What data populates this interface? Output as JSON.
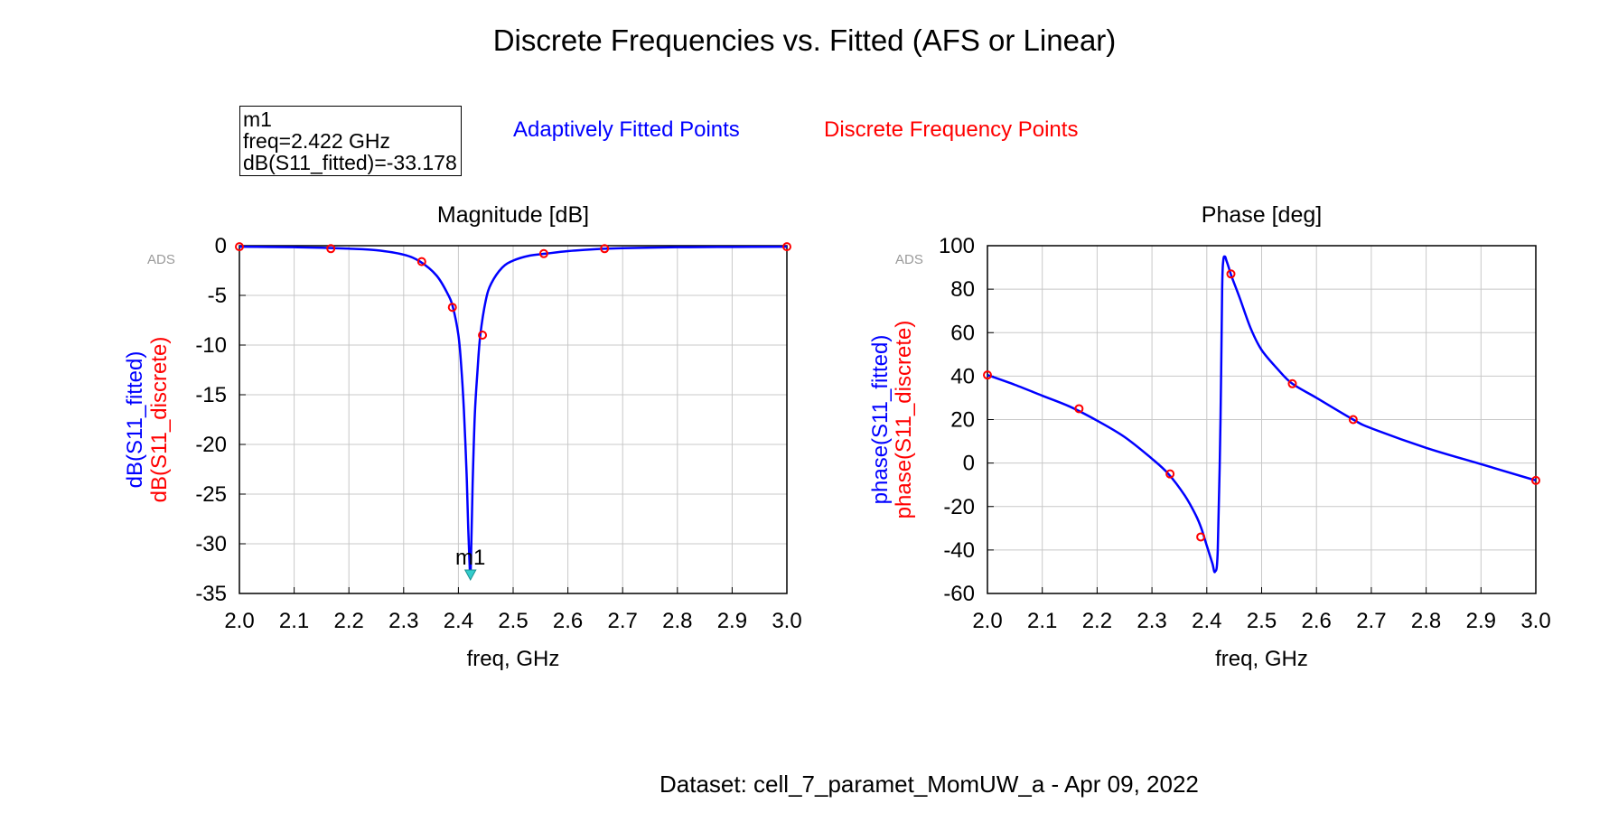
{
  "title": "Discrete Frequencies vs. Fitted (AFS or Linear)",
  "marker": {
    "name": "m1",
    "line1": "m1",
    "line2": "freq=2.422 GHz",
    "line3": "dB(S11_fitted)=-33.178",
    "freq": 2.422,
    "value": -33.178
  },
  "legend": {
    "fitted": "Adaptively Fitted Points",
    "discrete": "Discrete Frequency Points",
    "fitted_color": "#0000ff",
    "discrete_color": "#ff0000"
  },
  "dataset": "Dataset: cell_7_paramet_MomUW_a - Apr 09, 2022",
  "watermark": "ADS",
  "chart_data": [
    {
      "type": "line",
      "title": "Magnitude [dB]",
      "xlabel": "freq, GHz",
      "ylabel_fitted": "dB(S11_fitted)",
      "ylabel_discrete": "dB(S11_discrete)",
      "xlim": [
        2.0,
        3.0
      ],
      "ylim": [
        -35,
        0
      ],
      "xticks": [
        "2.0",
        "2.1",
        "2.2",
        "2.3",
        "2.4",
        "2.5",
        "2.6",
        "2.7",
        "2.8",
        "2.9",
        "3.0"
      ],
      "yticks": [
        "0",
        "-5",
        "-10",
        "-15",
        "-20",
        "-25",
        "-30",
        "-35"
      ],
      "grid": true,
      "series": [
        {
          "name": "dB(S11_fitted)",
          "x": [
            2.0,
            2.05,
            2.1,
            2.15,
            2.2,
            2.25,
            2.3,
            2.33,
            2.36,
            2.38,
            2.39,
            2.4,
            2.405,
            2.41,
            2.415,
            2.418,
            2.42,
            2.422,
            2.424,
            2.426,
            2.43,
            2.435,
            2.44,
            2.45,
            2.46,
            2.48,
            2.5,
            2.53,
            2.56,
            2.6,
            2.65,
            2.7,
            2.8,
            2.9,
            3.0
          ],
          "y": [
            -0.1,
            -0.12,
            -0.15,
            -0.2,
            -0.3,
            -0.45,
            -0.9,
            -1.6,
            -3.0,
            -4.8,
            -6.2,
            -9.0,
            -12.0,
            -16.5,
            -23.0,
            -28.5,
            -31.5,
            -33.178,
            -29.0,
            -24.0,
            -17.0,
            -12.5,
            -9.0,
            -5.5,
            -3.8,
            -2.2,
            -1.5,
            -1.0,
            -0.8,
            -0.55,
            -0.35,
            -0.25,
            -0.15,
            -0.12,
            -0.1
          ]
        },
        {
          "name": "dB(S11_discrete)",
          "x": [
            2.0,
            2.167,
            2.333,
            2.389,
            2.444,
            2.556,
            2.667,
            3.0
          ],
          "y": [
            -0.1,
            -0.3,
            -1.6,
            -6.2,
            -9.0,
            -0.8,
            -0.3,
            -0.1
          ]
        }
      ]
    },
    {
      "type": "line",
      "title": "Phase [deg]",
      "xlabel": "freq, GHz",
      "ylabel_fitted": "phase(S11_fitted)",
      "ylabel_discrete": "phase(S11_discrete)",
      "xlim": [
        2.0,
        3.0
      ],
      "ylim": [
        -60,
        100
      ],
      "xticks": [
        "2.0",
        "2.1",
        "2.2",
        "2.3",
        "2.4",
        "2.5",
        "2.6",
        "2.7",
        "2.8",
        "2.9",
        "3.0"
      ],
      "yticks": [
        "100",
        "80",
        "60",
        "40",
        "20",
        "0",
        "-20",
        "-40",
        "-60"
      ],
      "grid": true,
      "series": [
        {
          "name": "phase(S11_fitted)",
          "x": [
            2.0,
            2.05,
            2.1,
            2.15,
            2.2,
            2.25,
            2.3,
            2.33,
            2.36,
            2.38,
            2.39,
            2.4,
            2.41,
            2.415,
            2.42,
            2.425,
            2.428,
            2.43,
            2.433,
            2.436,
            2.44,
            2.445,
            2.46,
            2.48,
            2.5,
            2.53,
            2.556,
            2.6,
            2.667,
            2.7,
            2.8,
            2.9,
            3.0
          ],
          "y": [
            40.5,
            36,
            31,
            26,
            19.5,
            12,
            2,
            -5,
            -15,
            -24,
            -30,
            -38,
            -46,
            -50,
            -40,
            20,
            80,
            93,
            95,
            93,
            90,
            86,
            76,
            62,
            52,
            43,
            36.5,
            30,
            20,
            16,
            7,
            -0.5,
            -8
          ]
        },
        {
          "name": "phase(S11_discrete)",
          "x": [
            2.0,
            2.167,
            2.333,
            2.389,
            2.444,
            2.556,
            2.667,
            3.0
          ],
          "y": [
            40.5,
            25,
            -5,
            -34,
            87,
            36.5,
            20,
            -8
          ]
        }
      ]
    }
  ]
}
